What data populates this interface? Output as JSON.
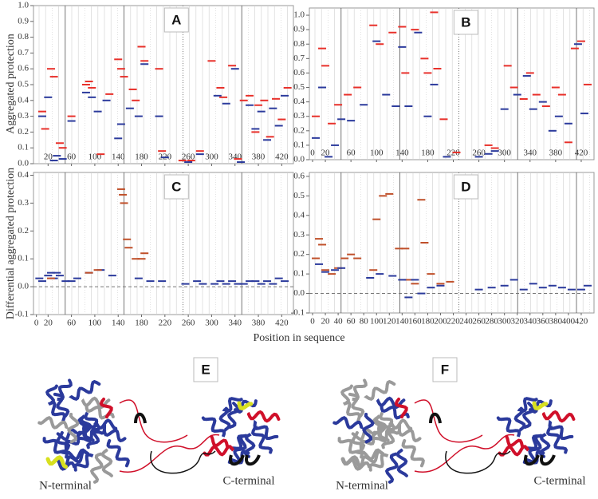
{
  "chart_data": [
    {
      "type": "scatter",
      "panel": "A",
      "ylabel": "Aggregated protection",
      "xlim": [
        -5,
        440
      ],
      "ylim": [
        0,
        1.0
      ],
      "xticks": [
        20,
        60,
        100,
        140,
        180,
        220,
        260,
        300,
        340,
        380,
        420
      ],
      "yticks": [
        {
          "value": 0,
          "label": "0.0"
        },
        0.1,
        0.2,
        0.3,
        0.4,
        0.5,
        0.6,
        0.7,
        0.8,
        0.9,
        {
          "value": 1,
          "label": "1.0"
        }
      ],
      "series": [
        {
          "color": "#e8302a",
          "x": [
            10,
            15,
            25,
            30,
            40,
            45,
            60,
            85,
            90,
            95,
            110,
            125,
            140,
            145,
            150,
            165,
            170,
            180,
            185,
            210,
            215,
            250,
            265,
            280,
            300,
            315,
            320,
            335,
            345,
            355,
            365,
            375,
            380,
            390,
            400,
            410,
            420,
            430
          ],
          "values": [
            0.33,
            0.22,
            0.6,
            0.55,
            0.13,
            0.1,
            0.3,
            0.5,
            0.52,
            0.48,
            0.06,
            0.44,
            0.66,
            0.6,
            0.55,
            0.47,
            0.4,
            0.74,
            0.65,
            0.6,
            0.08,
            0.02,
            0.02,
            0.08,
            0.65,
            0.48,
            0.42,
            0.62,
            0.03,
            0.4,
            0.43,
            0.2,
            0.37,
            0.4,
            0.17,
            0.41,
            0.28,
            0.48
          ]
        },
        {
          "color": "#2b3a9c",
          "x": [
            10,
            20,
            30,
            35,
            45,
            60,
            85,
            95,
            105,
            120,
            140,
            145,
            160,
            175,
            185,
            210,
            220,
            260,
            280,
            310,
            325,
            340,
            350,
            365,
            375,
            385,
            395,
            405,
            415,
            425
          ],
          "values": [
            0.3,
            0.42,
            0.02,
            0.05,
            0.03,
            0.27,
            0.45,
            0.42,
            0.33,
            0.4,
            0.16,
            0.25,
            0.35,
            0.3,
            0.63,
            0.3,
            0.04,
            0.01,
            0.06,
            0.43,
            0.38,
            0.6,
            0.01,
            0.37,
            0.22,
            0.33,
            0.15,
            0.35,
            0.24,
            0.43
          ]
        }
      ]
    },
    {
      "type": "scatter",
      "panel": "B",
      "xlim": [
        -5,
        440
      ],
      "ylim": [
        0,
        1.05
      ],
      "xticks": [
        0,
        20,
        60,
        100,
        140,
        180,
        220,
        260,
        300,
        340,
        380,
        420
      ],
      "yticks": [
        {
          "value": 0,
          "label": "0.0"
        },
        0.1,
        0.2,
        0.3,
        0.4,
        0.5,
        0.6,
        0.7,
        0.8,
        0.9,
        {
          "value": 1,
          "label": "1.0"
        }
      ],
      "series": [
        {
          "color": "#e8302a",
          "x": [
            5,
            15,
            20,
            30,
            40,
            55,
            70,
            95,
            105,
            125,
            140,
            145,
            160,
            175,
            180,
            190,
            195,
            205,
            225,
            275,
            285,
            305,
            315,
            330,
            340,
            350,
            365,
            380,
            390,
            400,
            410,
            420,
            430
          ],
          "values": [
            0.3,
            0.77,
            0.65,
            0.25,
            0.38,
            0.45,
            0.5,
            0.93,
            0.8,
            0.88,
            0.92,
            0.6,
            0.9,
            0.7,
            0.6,
            1.02,
            0.63,
            0.28,
            0.05,
            0.1,
            0.08,
            0.65,
            0.5,
            0.42,
            0.6,
            0.45,
            0.37,
            0.5,
            0.45,
            0.12,
            0.77,
            0.82,
            0.52
          ]
        },
        {
          "color": "#2b3a9c",
          "x": [
            5,
            15,
            25,
            35,
            45,
            60,
            80,
            100,
            115,
            130,
            140,
            150,
            165,
            180,
            190,
            210,
            260,
            275,
            285,
            300,
            320,
            335,
            345,
            360,
            375,
            385,
            400,
            415,
            425
          ],
          "values": [
            0.15,
            0.5,
            0.02,
            0.1,
            0.28,
            0.27,
            0.38,
            0.82,
            0.45,
            0.37,
            0.78,
            0.37,
            0.88,
            0.3,
            0.52,
            0.02,
            0.02,
            0.04,
            0.06,
            0.35,
            0.45,
            0.58,
            0.35,
            0.4,
            0.2,
            0.3,
            0.25,
            0.8,
            0.32
          ]
        }
      ]
    },
    {
      "type": "scatter",
      "panel": "C",
      "ylabel": "Differential aggregated protection",
      "xlabel": "Position in sequence",
      "xlim": [
        -5,
        440
      ],
      "ylim": [
        -0.1,
        0.41
      ],
      "reference_line": 0,
      "xticks": [
        0,
        20,
        60,
        100,
        140,
        180,
        220,
        260,
        300,
        340,
        380,
        420
      ],
      "yticks": [
        -0.1,
        {
          "value": 0,
          "label": "0.0"
        },
        0.1,
        0.2,
        0.3,
        0.4
      ],
      "series": [
        {
          "color": "#2b3a9c",
          "x": [
            5,
            10,
            20,
            25,
            30,
            35,
            40,
            50,
            60,
            70,
            90,
            110,
            130,
            175,
            195,
            215,
            255,
            275,
            285,
            305,
            315,
            325,
            335,
            345,
            355,
            365,
            375,
            385,
            395,
            405,
            415,
            425
          ],
          "values": [
            0.03,
            0.02,
            0.04,
            0.05,
            0.03,
            0.05,
            0.04,
            0.02,
            0.02,
            0.03,
            0.05,
            0.06,
            0.04,
            0.03,
            0.02,
            0.02,
            0.01,
            0.02,
            0.01,
            0.01,
            0.02,
            0.01,
            0.02,
            0.01,
            0.01,
            0.02,
            0.02,
            0.01,
            0.02,
            0.01,
            0.03,
            0.02
          ]
        },
        {
          "color": "#c0502a",
          "x": [
            25,
            90,
            105,
            145,
            148,
            150,
            155,
            158,
            170,
            180,
            185
          ],
          "values": [
            0.03,
            0.05,
            0.06,
            0.35,
            0.33,
            0.3,
            0.17,
            0.14,
            0.1,
            0.1,
            0.12
          ]
        }
      ]
    },
    {
      "type": "scatter",
      "panel": "D",
      "xlim": [
        -5,
        440
      ],
      "ylim": [
        -0.1,
        0.62
      ],
      "reference_line": 0,
      "xticks": [
        0,
        20,
        40,
        60,
        80,
        100,
        120,
        140,
        160,
        180,
        200,
        220,
        240,
        260,
        280,
        300,
        320,
        340,
        360,
        380,
        400,
        420
      ],
      "yticks": [
        -0.1,
        {
          "value": 0,
          "label": "0.0"
        },
        0.1,
        0.2,
        0.3,
        0.4,
        0.5,
        0.6
      ],
      "series": [
        {
          "color": "#c0502a",
          "x": [
            5,
            10,
            15,
            20,
            30,
            40,
            50,
            60,
            70,
            95,
            100,
            110,
            120,
            135,
            145,
            150,
            160,
            170,
            175,
            185,
            200,
            215
          ],
          "values": [
            0.18,
            0.28,
            0.25,
            0.12,
            0.1,
            0.13,
            0.18,
            0.2,
            0.18,
            0.12,
            0.38,
            0.5,
            0.51,
            0.23,
            0.23,
            0.07,
            0.05,
            0.48,
            0.26,
            0.1,
            0.05,
            0.06
          ]
        },
        {
          "color": "#2b3a9c",
          "x": [
            10,
            20,
            35,
            45,
            90,
            105,
            125,
            140,
            150,
            160,
            170,
            185,
            200,
            260,
            280,
            300,
            315,
            330,
            345,
            360,
            375,
            390,
            405,
            420,
            430
          ],
          "values": [
            0.15,
            0.11,
            0.12,
            0.13,
            0.08,
            0.1,
            0.09,
            0.07,
            -0.02,
            0.07,
            0.0,
            0.03,
            0.04,
            0.02,
            0.03,
            0.04,
            0.07,
            0.02,
            0.05,
            0.03,
            0.04,
            0.03,
            0.02,
            0.02,
            0.04
          ]
        }
      ]
    }
  ],
  "structures": [
    {
      "label": "E",
      "n_label": "N-terminal",
      "c_label": "C-terminal"
    },
    {
      "label": "F",
      "n_label": "N-terminal",
      "c_label": "C-terminal"
    }
  ]
}
